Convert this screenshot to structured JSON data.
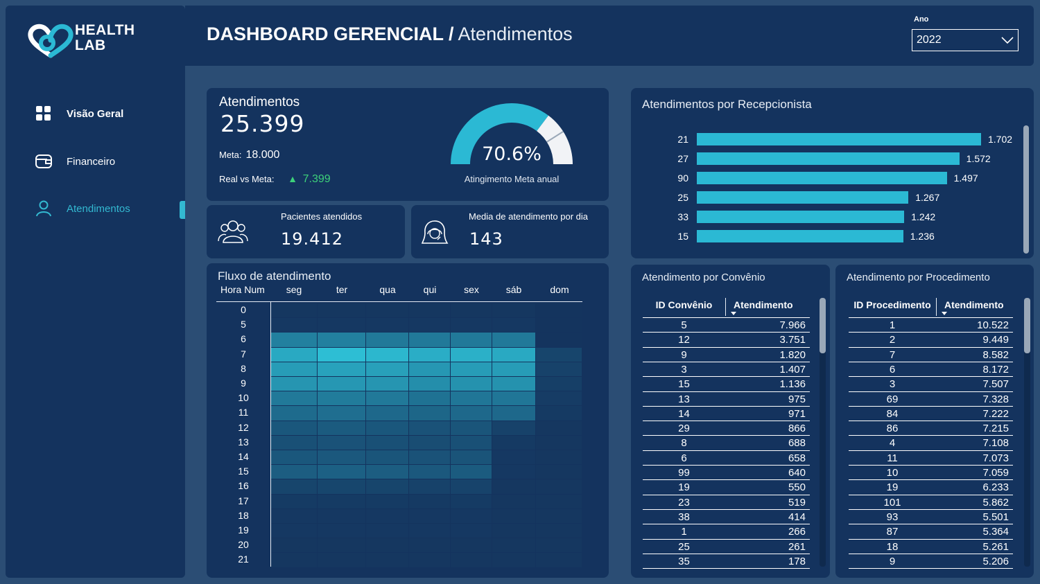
{
  "brand": {
    "line1": "HEALTH",
    "line2": "LAB"
  },
  "header": {
    "title_strong": "DASHBOARD GERENCIAL /",
    "title_light": "Atendimentos",
    "year_label": "Ano",
    "year_value": "2022"
  },
  "sidebar": {
    "items": [
      {
        "label": "Visão Geral",
        "icon": "grid-icon"
      },
      {
        "label": "Financeiro",
        "icon": "wallet-icon"
      },
      {
        "label": "Atendimentos",
        "icon": "user-icon"
      }
    ]
  },
  "kpi": {
    "title": "Atendimentos",
    "value": "25.399",
    "meta_label": "Meta:",
    "meta_value": "18.000",
    "diff_label": "Real vs Meta:",
    "diff_value": "7.399",
    "gauge_pct": "70.6%",
    "gauge_fraction": 0.706,
    "gauge_label": "Atingimento Meta anual"
  },
  "patients": {
    "label": "Pacientes atendidos",
    "value": "19.412"
  },
  "daily_avg": {
    "label": "Media de atendimento por dia",
    "value": "143"
  },
  "colors": {
    "bar": "#2bb9d4",
    "background": "#2b4d74",
    "card": "#14335e",
    "accent": "#33b9d1",
    "positive": "#3dd17a"
  },
  "chart_data": [
    {
      "type": "bar",
      "title": "Atendimentos por Recepcionista",
      "categories": [
        "21",
        "27",
        "90",
        "25",
        "33",
        "15"
      ],
      "values": [
        1702,
        1572,
        1497,
        1267,
        1242,
        1236
      ],
      "labels": [
        "1.702",
        "1.572",
        "1.497",
        "1.267",
        "1.242",
        "1.236"
      ],
      "orientation": "horizontal"
    },
    {
      "type": "heatmap",
      "title": "Fluxo de atendimento",
      "row_header": "Hora Num",
      "columns": [
        "seg",
        "ter",
        "qua",
        "qui",
        "sex",
        "sáb",
        "dom"
      ],
      "rows": [
        "0",
        "5",
        "6",
        "7",
        "8",
        "9",
        "10",
        "11",
        "12",
        "13",
        "14",
        "15",
        "16",
        "17",
        "18",
        "19",
        "20",
        "21"
      ],
      "intensity": [
        [
          0.02,
          0.02,
          0.02,
          0.02,
          0.02,
          0.02,
          0.0
        ],
        [
          0.03,
          0.03,
          0.03,
          0.03,
          0.03,
          0.03,
          0.0
        ],
        [
          0.55,
          0.55,
          0.5,
          0.5,
          0.5,
          0.5,
          0.0
        ],
        [
          0.85,
          1.0,
          0.95,
          0.88,
          0.9,
          0.85,
          0.12
        ],
        [
          0.75,
          0.8,
          0.78,
          0.72,
          0.75,
          0.75,
          0.1
        ],
        [
          0.7,
          0.72,
          0.7,
          0.65,
          0.68,
          0.68,
          0.08
        ],
        [
          0.5,
          0.52,
          0.5,
          0.45,
          0.48,
          0.48,
          0.06
        ],
        [
          0.4,
          0.42,
          0.38,
          0.36,
          0.38,
          0.38,
          0.04
        ],
        [
          0.25,
          0.28,
          0.25,
          0.22,
          0.24,
          0.1,
          0.02
        ],
        [
          0.2,
          0.22,
          0.2,
          0.18,
          0.2,
          0.04,
          0.02
        ],
        [
          0.25,
          0.26,
          0.24,
          0.22,
          0.23,
          0.03,
          0.02
        ],
        [
          0.3,
          0.32,
          0.3,
          0.26,
          0.28,
          0.03,
          0.02
        ],
        [
          0.12,
          0.13,
          0.12,
          0.1,
          0.11,
          0.02,
          0.02
        ],
        [
          0.05,
          0.05,
          0.05,
          0.04,
          0.05,
          0.02,
          0.02
        ],
        [
          0.03,
          0.03,
          0.03,
          0.03,
          0.03,
          0.02,
          0.02
        ],
        [
          0.03,
          0.03,
          0.03,
          0.03,
          0.03,
          0.02,
          0.02
        ],
        [
          0.02,
          0.02,
          0.02,
          0.02,
          0.02,
          0.02,
          0.02
        ],
        [
          0.02,
          0.02,
          0.02,
          0.02,
          0.02,
          0.02,
          0.02
        ]
      ]
    }
  ],
  "convenio": {
    "title": "Atendimento por Convênio",
    "col1": "ID Convênio",
    "col2": "Atendimento",
    "rows": [
      [
        "5",
        "7.966"
      ],
      [
        "12",
        "3.751"
      ],
      [
        "9",
        "1.820"
      ],
      [
        "3",
        "1.407"
      ],
      [
        "15",
        "1.136"
      ],
      [
        "13",
        "975"
      ],
      [
        "14",
        "971"
      ],
      [
        "29",
        "866"
      ],
      [
        "8",
        "688"
      ],
      [
        "6",
        "658"
      ],
      [
        "99",
        "640"
      ],
      [
        "19",
        "550"
      ],
      [
        "23",
        "519"
      ],
      [
        "38",
        "414"
      ],
      [
        "1",
        "266"
      ],
      [
        "25",
        "261"
      ],
      [
        "35",
        "178"
      ]
    ]
  },
  "procedimento": {
    "title": "Atendimento por Procedimento",
    "col1": "ID Procedimento",
    "col2": "Atendimento",
    "rows": [
      [
        "1",
        "10.522"
      ],
      [
        "2",
        "9.449"
      ],
      [
        "7",
        "8.582"
      ],
      [
        "6",
        "8.172"
      ],
      [
        "3",
        "7.507"
      ],
      [
        "69",
        "7.328"
      ],
      [
        "84",
        "7.222"
      ],
      [
        "86",
        "7.215"
      ],
      [
        "4",
        "7.108"
      ],
      [
        "11",
        "7.073"
      ],
      [
        "10",
        "7.059"
      ],
      [
        "19",
        "6.233"
      ],
      [
        "101",
        "5.862"
      ],
      [
        "93",
        "5.501"
      ],
      [
        "87",
        "5.364"
      ],
      [
        "18",
        "5.261"
      ],
      [
        "9",
        "5.206"
      ]
    ]
  }
}
